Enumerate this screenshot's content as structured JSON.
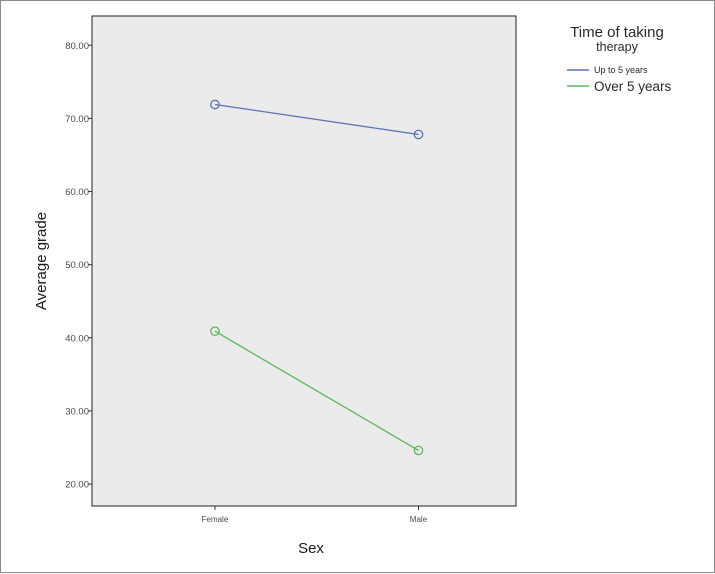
{
  "chart_data": {
    "type": "line",
    "title": "",
    "xlabel": "Sex",
    "ylabel": "Average grade",
    "categories": [
      "Female",
      "Male"
    ],
    "yticks": [
      "20.00",
      "30.00",
      "40.00",
      "50.00",
      "60.00",
      "70.00",
      "80.00"
    ],
    "ylim": [
      17,
      84
    ],
    "grid": false,
    "legend": {
      "title_line1": "Time of taking",
      "title_line2": "therapy",
      "placement": "right"
    },
    "series": [
      {
        "name": "Up to 5 years",
        "color": "#5a72b8",
        "values": [
          71.9,
          67.8
        ]
      },
      {
        "name": "Over 5 years",
        "color": "#5ab85a",
        "values": [
          40.9,
          24.6
        ]
      }
    ],
    "plot_background": "#ebebeb"
  }
}
